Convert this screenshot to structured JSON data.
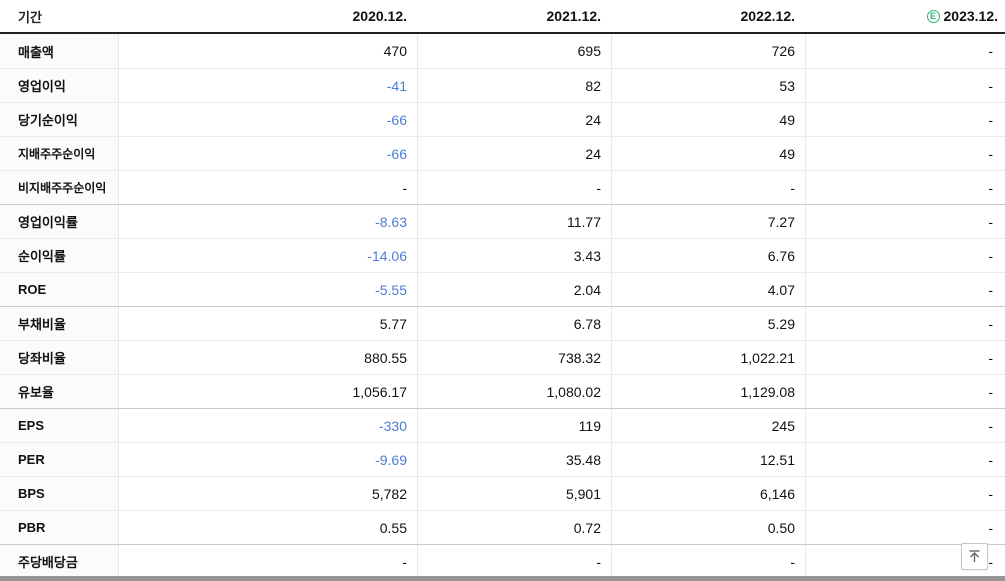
{
  "colors": {
    "negative_value": "#4a7ed9",
    "estimate_green": "#2bb673",
    "header_border": "#222222"
  },
  "table": {
    "header": {
      "period_label": "기간",
      "columns": [
        {
          "label": "2020.12.",
          "estimate": false
        },
        {
          "label": "2021.12.",
          "estimate": false
        },
        {
          "label": "2022.12.",
          "estimate": false
        },
        {
          "label": "2023.12.",
          "estimate": true,
          "estimate_badge": "E"
        }
      ]
    },
    "rows": [
      {
        "label": "매출액",
        "values": [
          "470",
          "695",
          "726",
          "-"
        ],
        "sub": false,
        "group_start": false
      },
      {
        "label": "영업이익",
        "values": [
          "-41",
          "82",
          "53",
          "-"
        ],
        "sub": false,
        "group_start": false
      },
      {
        "label": "당기순이익",
        "values": [
          "-66",
          "24",
          "49",
          "-"
        ],
        "sub": false,
        "group_start": false
      },
      {
        "label": "지배주주순이익",
        "values": [
          "-66",
          "24",
          "49",
          "-"
        ],
        "sub": true,
        "group_start": false
      },
      {
        "label": "비지배주주순이익",
        "values": [
          "-",
          "-",
          "-",
          "-"
        ],
        "sub": true,
        "group_start": false
      },
      {
        "label": "영업이익률",
        "values": [
          "-8.63",
          "11.77",
          "7.27",
          "-"
        ],
        "sub": false,
        "group_start": true
      },
      {
        "label": "순이익률",
        "values": [
          "-14.06",
          "3.43",
          "6.76",
          "-"
        ],
        "sub": false,
        "group_start": false
      },
      {
        "label": "ROE",
        "values": [
          "-5.55",
          "2.04",
          "4.07",
          "-"
        ],
        "sub": false,
        "group_start": false
      },
      {
        "label": "부채비율",
        "values": [
          "5.77",
          "6.78",
          "5.29",
          "-"
        ],
        "sub": false,
        "group_start": true
      },
      {
        "label": "당좌비율",
        "values": [
          "880.55",
          "738.32",
          "1,022.21",
          "-"
        ],
        "sub": false,
        "group_start": false
      },
      {
        "label": "유보율",
        "values": [
          "1,056.17",
          "1,080.02",
          "1,129.08",
          "-"
        ],
        "sub": false,
        "group_start": false
      },
      {
        "label": "EPS",
        "values": [
          "-330",
          "119",
          "245",
          "-"
        ],
        "sub": false,
        "group_start": true
      },
      {
        "label": "PER",
        "values": [
          "-9.69",
          "35.48",
          "12.51",
          "-"
        ],
        "sub": false,
        "group_start": false
      },
      {
        "label": "BPS",
        "values": [
          "5,782",
          "5,901",
          "6,146",
          "-"
        ],
        "sub": false,
        "group_start": false
      },
      {
        "label": "PBR",
        "values": [
          "0.55",
          "0.72",
          "0.50",
          "-"
        ],
        "sub": false,
        "group_start": false
      },
      {
        "label": "주당배당금",
        "values": [
          "-",
          "-",
          "-",
          "-"
        ],
        "sub": false,
        "group_start": true
      }
    ]
  },
  "scroll_top_button": {
    "icon": "arrow-up-to-top-icon"
  }
}
